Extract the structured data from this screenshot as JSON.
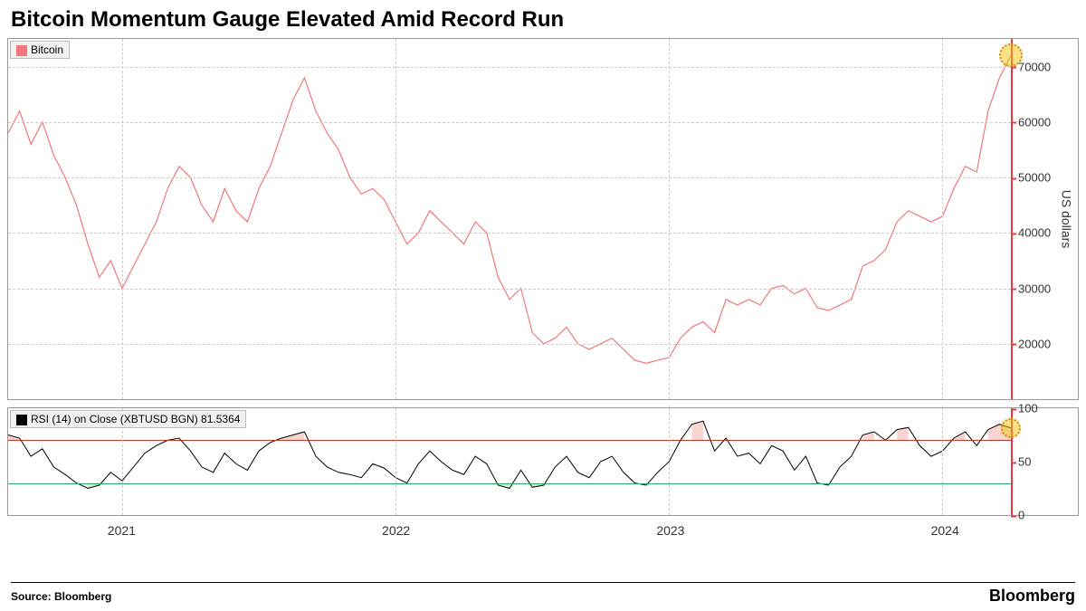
{
  "title": "Bitcoin Momentum Gauge Elevated Amid Record Run",
  "source_label": "Source: Bloomberg",
  "brand": "Bloomberg",
  "price_chart": {
    "type": "line",
    "legend_label": "Bitcoin",
    "legend_swatch_color": "#f07878",
    "line_color": "#f07878",
    "line_width": 1.2,
    "background_color": "#ffffff",
    "grid_color": "#cccccc",
    "ylabel": "US dollars",
    "ylim": [
      10000,
      75000
    ],
    "yticks": [
      20000,
      30000,
      40000,
      50000,
      60000,
      70000
    ],
    "xlim": [
      0,
      44
    ],
    "xticks": [
      {
        "t": 5,
        "label": "2021"
      },
      {
        "t": 17,
        "label": "2022"
      },
      {
        "t": 29,
        "label": "2023"
      },
      {
        "t": 41,
        "label": "2024"
      }
    ],
    "series": [
      {
        "t": 0,
        "v": 58000
      },
      {
        "t": 0.5,
        "v": 62000
      },
      {
        "t": 1,
        "v": 56000
      },
      {
        "t": 1.5,
        "v": 60000
      },
      {
        "t": 2,
        "v": 54000
      },
      {
        "t": 2.5,
        "v": 50000
      },
      {
        "t": 3,
        "v": 45000
      },
      {
        "t": 3.5,
        "v": 38000
      },
      {
        "t": 4,
        "v": 32000
      },
      {
        "t": 4.5,
        "v": 35000
      },
      {
        "t": 5,
        "v": 30000
      },
      {
        "t": 5.5,
        "v": 34000
      },
      {
        "t": 6,
        "v": 38000
      },
      {
        "t": 6.5,
        "v": 42000
      },
      {
        "t": 7,
        "v": 48000
      },
      {
        "t": 7.5,
        "v": 52000
      },
      {
        "t": 8,
        "v": 50000
      },
      {
        "t": 8.5,
        "v": 45000
      },
      {
        "t": 9,
        "v": 42000
      },
      {
        "t": 9.5,
        "v": 48000
      },
      {
        "t": 10,
        "v": 44000
      },
      {
        "t": 10.5,
        "v": 42000
      },
      {
        "t": 11,
        "v": 48000
      },
      {
        "t": 11.5,
        "v": 52000
      },
      {
        "t": 12,
        "v": 58000
      },
      {
        "t": 12.5,
        "v": 64000
      },
      {
        "t": 13,
        "v": 68000
      },
      {
        "t": 13.5,
        "v": 62000
      },
      {
        "t": 14,
        "v": 58000
      },
      {
        "t": 14.5,
        "v": 55000
      },
      {
        "t": 15,
        "v": 50000
      },
      {
        "t": 15.5,
        "v": 47000
      },
      {
        "t": 16,
        "v": 48000
      },
      {
        "t": 16.5,
        "v": 46000
      },
      {
        "t": 17,
        "v": 42000
      },
      {
        "t": 17.5,
        "v": 38000
      },
      {
        "t": 18,
        "v": 40000
      },
      {
        "t": 18.5,
        "v": 44000
      },
      {
        "t": 19,
        "v": 42000
      },
      {
        "t": 19.5,
        "v": 40000
      },
      {
        "t": 20,
        "v": 38000
      },
      {
        "t": 20.5,
        "v": 42000
      },
      {
        "t": 21,
        "v": 40000
      },
      {
        "t": 21.5,
        "v": 32000
      },
      {
        "t": 22,
        "v": 28000
      },
      {
        "t": 22.5,
        "v": 30000
      },
      {
        "t": 23,
        "v": 22000
      },
      {
        "t": 23.5,
        "v": 20000
      },
      {
        "t": 24,
        "v": 21000
      },
      {
        "t": 24.5,
        "v": 23000
      },
      {
        "t": 25,
        "v": 20000
      },
      {
        "t": 25.5,
        "v": 19000
      },
      {
        "t": 26,
        "v": 20000
      },
      {
        "t": 26.5,
        "v": 21000
      },
      {
        "t": 27,
        "v": 19000
      },
      {
        "t": 27.5,
        "v": 17000
      },
      {
        "t": 28,
        "v": 16500
      },
      {
        "t": 28.5,
        "v": 17000
      },
      {
        "t": 29,
        "v": 17500
      },
      {
        "t": 29.5,
        "v": 21000
      },
      {
        "t": 30,
        "v": 23000
      },
      {
        "t": 30.5,
        "v": 24000
      },
      {
        "t": 31,
        "v": 22000
      },
      {
        "t": 31.5,
        "v": 28000
      },
      {
        "t": 32,
        "v": 27000
      },
      {
        "t": 32.5,
        "v": 28000
      },
      {
        "t": 33,
        "v": 27000
      },
      {
        "t": 33.5,
        "v": 30000
      },
      {
        "t": 34,
        "v": 30500
      },
      {
        "t": 34.5,
        "v": 29000
      },
      {
        "t": 35,
        "v": 30000
      },
      {
        "t": 35.5,
        "v": 26500
      },
      {
        "t": 36,
        "v": 26000
      },
      {
        "t": 36.5,
        "v": 27000
      },
      {
        "t": 37,
        "v": 28000
      },
      {
        "t": 37.5,
        "v": 34000
      },
      {
        "t": 38,
        "v": 35000
      },
      {
        "t": 38.5,
        "v": 37000
      },
      {
        "t": 39,
        "v": 42000
      },
      {
        "t": 39.5,
        "v": 44000
      },
      {
        "t": 40,
        "v": 43000
      },
      {
        "t": 40.5,
        "v": 42000
      },
      {
        "t": 41,
        "v": 43000
      },
      {
        "t": 41.5,
        "v": 48000
      },
      {
        "t": 42,
        "v": 52000
      },
      {
        "t": 42.5,
        "v": 51000
      },
      {
        "t": 43,
        "v": 62000
      },
      {
        "t": 43.5,
        "v": 68000
      },
      {
        "t": 44,
        "v": 72000
      }
    ],
    "highlight_point": {
      "t": 44,
      "v": 72000
    }
  },
  "rsi_chart": {
    "type": "line",
    "legend_label": "RSI (14)  on Close (XBTUSD BGN) 81.5364",
    "legend_swatch_color": "#000000",
    "line_color": "#000000",
    "line_width": 1,
    "upper_band": 70,
    "lower_band": 30,
    "upper_band_color": "#c0392b",
    "lower_band_color": "#27ae60",
    "overbought_fill": "#f5b7b1",
    "oversold_fill": "#abebc6",
    "ylim": [
      0,
      100
    ],
    "yticks": [
      0,
      50,
      100
    ],
    "xlim": [
      0,
      44
    ],
    "series": [
      {
        "t": 0,
        "v": 75
      },
      {
        "t": 0.5,
        "v": 72
      },
      {
        "t": 1,
        "v": 55
      },
      {
        "t": 1.5,
        "v": 62
      },
      {
        "t": 2,
        "v": 45
      },
      {
        "t": 2.5,
        "v": 38
      },
      {
        "t": 3,
        "v": 30
      },
      {
        "t": 3.5,
        "v": 25
      },
      {
        "t": 4,
        "v": 28
      },
      {
        "t": 4.5,
        "v": 40
      },
      {
        "t": 5,
        "v": 32
      },
      {
        "t": 5.5,
        "v": 45
      },
      {
        "t": 6,
        "v": 58
      },
      {
        "t": 6.5,
        "v": 65
      },
      {
        "t": 7,
        "v": 70
      },
      {
        "t": 7.5,
        "v": 72
      },
      {
        "t": 8,
        "v": 60
      },
      {
        "t": 8.5,
        "v": 45
      },
      {
        "t": 9,
        "v": 40
      },
      {
        "t": 9.5,
        "v": 58
      },
      {
        "t": 10,
        "v": 48
      },
      {
        "t": 10.5,
        "v": 42
      },
      {
        "t": 11,
        "v": 60
      },
      {
        "t": 11.5,
        "v": 68
      },
      {
        "t": 12,
        "v": 72
      },
      {
        "t": 12.5,
        "v": 75
      },
      {
        "t": 13,
        "v": 78
      },
      {
        "t": 13.5,
        "v": 55
      },
      {
        "t": 14,
        "v": 45
      },
      {
        "t": 14.5,
        "v": 40
      },
      {
        "t": 15,
        "v": 38
      },
      {
        "t": 15.5,
        "v": 35
      },
      {
        "t": 16,
        "v": 48
      },
      {
        "t": 16.5,
        "v": 44
      },
      {
        "t": 17,
        "v": 35
      },
      {
        "t": 17.5,
        "v": 30
      },
      {
        "t": 18,
        "v": 48
      },
      {
        "t": 18.5,
        "v": 60
      },
      {
        "t": 19,
        "v": 50
      },
      {
        "t": 19.5,
        "v": 42
      },
      {
        "t": 20,
        "v": 38
      },
      {
        "t": 20.5,
        "v": 55
      },
      {
        "t": 21,
        "v": 48
      },
      {
        "t": 21.5,
        "v": 28
      },
      {
        "t": 22,
        "v": 25
      },
      {
        "t": 22.5,
        "v": 42
      },
      {
        "t": 23,
        "v": 26
      },
      {
        "t": 23.5,
        "v": 28
      },
      {
        "t": 24,
        "v": 45
      },
      {
        "t": 24.5,
        "v": 55
      },
      {
        "t": 25,
        "v": 40
      },
      {
        "t": 25.5,
        "v": 35
      },
      {
        "t": 26,
        "v": 50
      },
      {
        "t": 26.5,
        "v": 55
      },
      {
        "t": 27,
        "v": 40
      },
      {
        "t": 27.5,
        "v": 30
      },
      {
        "t": 28,
        "v": 28
      },
      {
        "t": 28.5,
        "v": 40
      },
      {
        "t": 29,
        "v": 50
      },
      {
        "t": 29.5,
        "v": 70
      },
      {
        "t": 30,
        "v": 85
      },
      {
        "t": 30.5,
        "v": 88
      },
      {
        "t": 31,
        "v": 60
      },
      {
        "t": 31.5,
        "v": 72
      },
      {
        "t": 32,
        "v": 55
      },
      {
        "t": 32.5,
        "v": 58
      },
      {
        "t": 33,
        "v": 48
      },
      {
        "t": 33.5,
        "v": 65
      },
      {
        "t": 34,
        "v": 60
      },
      {
        "t": 34.5,
        "v": 42
      },
      {
        "t": 35,
        "v": 55
      },
      {
        "t": 35.5,
        "v": 30
      },
      {
        "t": 36,
        "v": 28
      },
      {
        "t": 36.5,
        "v": 45
      },
      {
        "t": 37,
        "v": 55
      },
      {
        "t": 37.5,
        "v": 75
      },
      {
        "t": 38,
        "v": 78
      },
      {
        "t": 38.5,
        "v": 70
      },
      {
        "t": 39,
        "v": 80
      },
      {
        "t": 39.5,
        "v": 82
      },
      {
        "t": 40,
        "v": 65
      },
      {
        "t": 40.5,
        "v": 55
      },
      {
        "t": 41,
        "v": 60
      },
      {
        "t": 41.5,
        "v": 72
      },
      {
        "t": 42,
        "v": 78
      },
      {
        "t": 42.5,
        "v": 65
      },
      {
        "t": 43,
        "v": 80
      },
      {
        "t": 43.5,
        "v": 85
      },
      {
        "t": 44,
        "v": 81.5
      }
    ],
    "highlight_point": {
      "t": 44,
      "v": 81.5
    }
  }
}
